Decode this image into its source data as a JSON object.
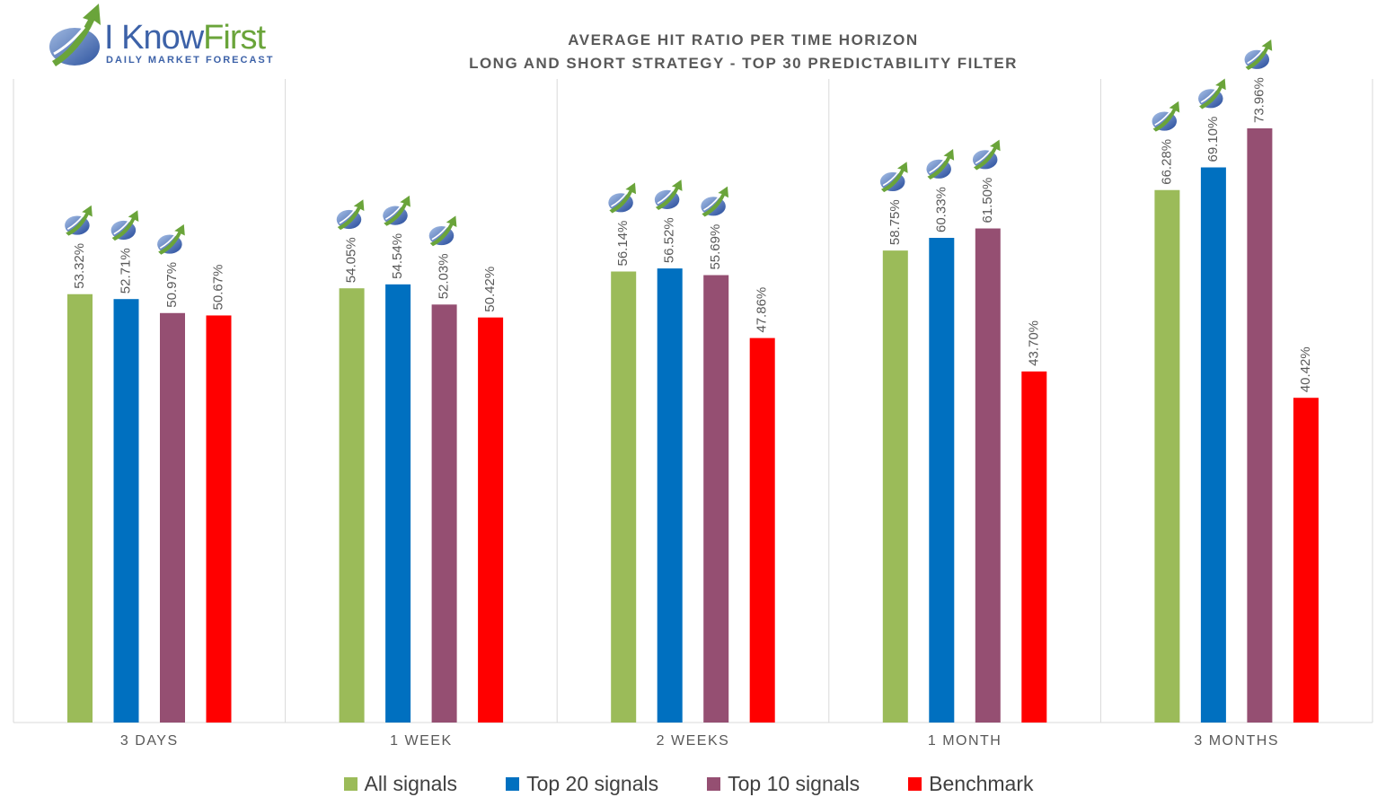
{
  "logo": {
    "name_part1": "I Know",
    "name_part2": "First",
    "tagline": "Daily Market Forecast"
  },
  "chart_data": {
    "type": "bar",
    "title": "AVERAGE HIT RATIO PER TIME HORIZON",
    "subtitle": "LONG AND SHORT STRATEGY - TOP 30 PREDICTABILITY FILTER",
    "categories": [
      "3 DAYS",
      "1 WEEK",
      "2 WEEKS",
      "1 MONTH",
      "3 MONTHS"
    ],
    "series": [
      {
        "name": "All signals",
        "color": "#9bbb59",
        "values": [
          53.32,
          54.05,
          56.14,
          58.75,
          66.28
        ]
      },
      {
        "name": "Top 20 signals",
        "color": "#0070c0",
        "values": [
          52.71,
          54.54,
          56.52,
          60.33,
          69.1
        ]
      },
      {
        "name": "Top 10 signals",
        "color": "#954f72",
        "values": [
          50.97,
          52.03,
          55.69,
          61.5,
          73.96
        ]
      },
      {
        "name": "Benchmark",
        "color": "#ff0000",
        "values": [
          50.67,
          50.42,
          47.86,
          43.7,
          40.42
        ]
      }
    ],
    "data_labels": {
      "3 DAYS": [
        "53.32%",
        "52.71%",
        "50.97%",
        "50.67%"
      ],
      "1 WEEK": [
        "54.05%",
        "54.54%",
        "52.03%",
        "50.42%"
      ],
      "2 WEEKS": [
        "56.14%",
        "56.52%",
        "55.69%",
        "47.86%"
      ],
      "1 MONTH": [
        "58.75%",
        "60.33%",
        "61.50%",
        "43.70%"
      ],
      "3 MONTHS": [
        "66.28%",
        "69.10%",
        "73.96%",
        "40.42%"
      ]
    },
    "label_icon": "ikf-logo-icon",
    "ylim": [
      0,
      80
    ],
    "grid": "vertical category separators",
    "legend_position": "bottom"
  }
}
